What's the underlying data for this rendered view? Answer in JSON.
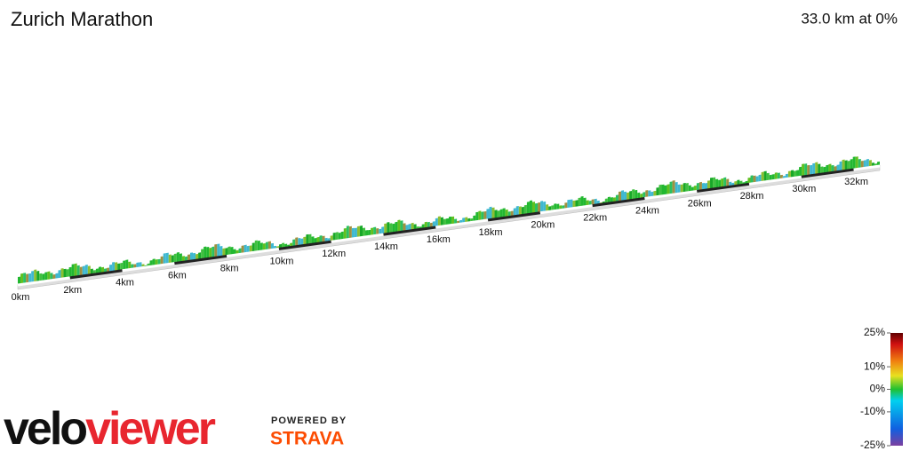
{
  "chart_data": {
    "type": "profile3d",
    "title": "Zurich Marathon",
    "summary": "33.0 km at 0%",
    "xlim": [
      0,
      33
    ],
    "xticks": [
      {
        "value": 0,
        "label": "0km"
      },
      {
        "value": 2,
        "label": "2km"
      },
      {
        "value": 4,
        "label": "4km"
      },
      {
        "value": 6,
        "label": "6km"
      },
      {
        "value": 8,
        "label": "8km"
      },
      {
        "value": 10,
        "label": "10km"
      },
      {
        "value": 12,
        "label": "12km"
      },
      {
        "value": 14,
        "label": "14km"
      },
      {
        "value": 16,
        "label": "16km"
      },
      {
        "value": 18,
        "label": "18km"
      },
      {
        "value": 20,
        "label": "20km"
      },
      {
        "value": 22,
        "label": "22km"
      },
      {
        "value": 24,
        "label": "24km"
      },
      {
        "value": 26,
        "label": "26km"
      },
      {
        "value": 28,
        "label": "28km"
      },
      {
        "value": 30,
        "label": "30km"
      },
      {
        "value": 32,
        "label": "32km"
      }
    ],
    "colorbar_lim": [
      -25,
      25
    ],
    "colorbar_ticks": [
      {
        "value": 25,
        "label": "25%"
      },
      {
        "value": 10,
        "label": "10%"
      },
      {
        "value": 0,
        "label": "0%"
      },
      {
        "value": -10,
        "label": "-10%"
      },
      {
        "value": -25,
        "label": "-25%"
      }
    ]
  },
  "branding": {
    "velo": "velo",
    "viewer": "viewer",
    "powered_by": "POWERED BY",
    "strava": "STRAVA"
  }
}
